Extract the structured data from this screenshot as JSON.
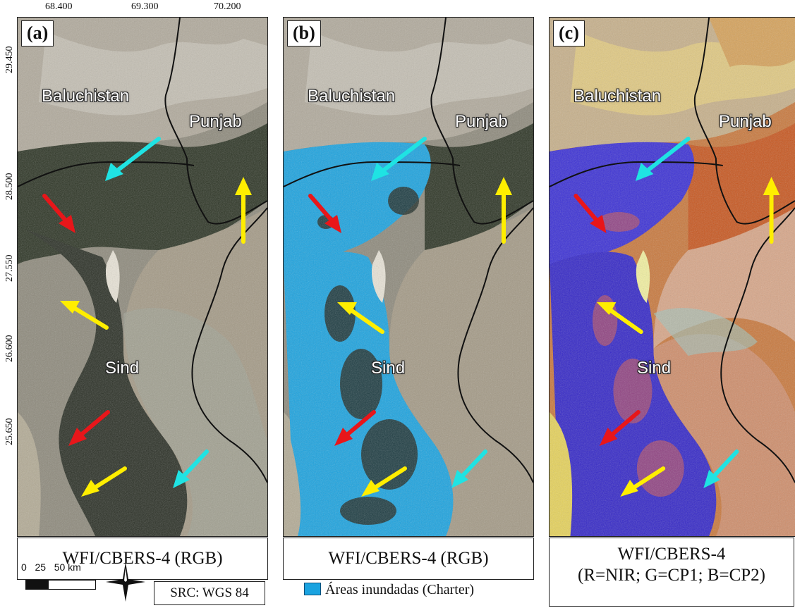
{
  "coordinates": {
    "longitude": [
      "68.400",
      "69.300",
      "70.200"
    ],
    "latitude": [
      "29.450",
      "28.500",
      "27.550",
      "26.600",
      "25.650"
    ]
  },
  "regions": {
    "baluchistan": "Baluchistan",
    "punjab": "Punjab",
    "sind": "Sind"
  },
  "panels": [
    {
      "letter": "(a)",
      "caption_line1": "WFI/CBERS-4 (RGB)",
      "caption_line2": ""
    },
    {
      "letter": "(b)",
      "caption_line1": "WFI/CBERS-4 (RGB)",
      "caption_line2": ""
    },
    {
      "letter": "(c)",
      "caption_line1": "WFI/CBERS-4",
      "caption_line2": "(R=NIR; G=CP1; B=CP2)"
    }
  ],
  "scale": {
    "labels": "0   25   50 km"
  },
  "src": "SRC: WGS 84",
  "legend": {
    "label": "Áreas inundadas (Charter)",
    "color": "#1aa3e0"
  },
  "arrow_colors": {
    "cyan": "#1fe3e3",
    "red": "#e8161a",
    "yellow": "#ffee00"
  }
}
